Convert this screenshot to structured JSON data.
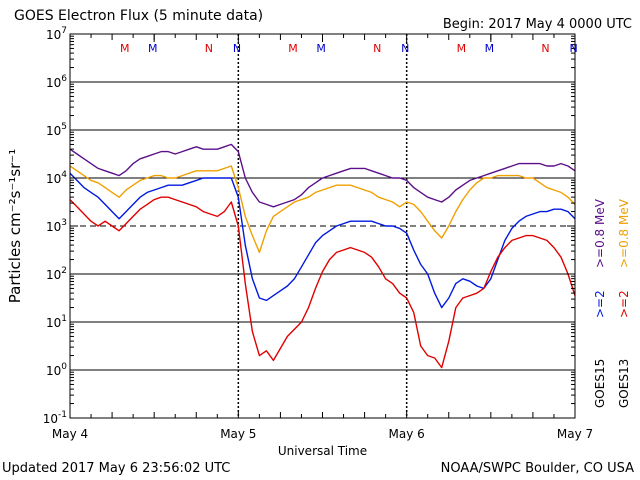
{
  "header": {
    "title": "GOES Electron Flux (5 minute data)",
    "begin": "Begin: 2017 May 4 0000 UTC"
  },
  "footer": {
    "updated": "Updated 2017 May  6 23:56:02 UTC",
    "credit": "NOAA/SWPC Boulder, CO USA"
  },
  "chart_data": {
    "type": "line",
    "xlabel": "Universal Time",
    "ylabel": "Particles cm⁻²s⁻¹sr⁻¹",
    "xlim": [
      0,
      72
    ],
    "ylim_log10": [
      -1,
      7
    ],
    "y_scale": "log",
    "x_ticks": [
      {
        "t": 0,
        "label": "May 4"
      },
      {
        "t": 24,
        "label": "May 5"
      },
      {
        "t": 48,
        "label": "May 6"
      },
      {
        "t": 72,
        "label": "May 7"
      }
    ],
    "y_ticks": [
      {
        "exp": -1,
        "label": "-1"
      },
      {
        "exp": 0,
        "label": "0"
      },
      {
        "exp": 1,
        "label": "1"
      },
      {
        "exp": 2,
        "label": "2"
      },
      {
        "exp": 3,
        "label": "3"
      },
      {
        "exp": 4,
        "label": "4"
      },
      {
        "exp": 5,
        "label": "5"
      },
      {
        "exp": 6,
        "label": "6"
      },
      {
        "exp": 7,
        "label": "7"
      }
    ],
    "threshold_exp": 3,
    "markers": [
      {
        "t": 7.8,
        "label": "M",
        "color": "#e00000"
      },
      {
        "t": 11.8,
        "label": "M",
        "color": "#0000cc"
      },
      {
        "t": 19.8,
        "label": "N",
        "color": "#e00000"
      },
      {
        "t": 23.8,
        "label": "N",
        "color": "#0000cc"
      },
      {
        "t": 31.8,
        "label": "M",
        "color": "#e00000"
      },
      {
        "t": 35.8,
        "label": "M",
        "color": "#0000cc"
      },
      {
        "t": 43.8,
        "label": "N",
        "color": "#e00000"
      },
      {
        "t": 47.8,
        "label": "N",
        "color": "#0000cc"
      },
      {
        "t": 55.8,
        "label": "M",
        "color": "#e00000"
      },
      {
        "t": 59.8,
        "label": "M",
        "color": "#0000cc"
      },
      {
        "t": 67.8,
        "label": "N",
        "color": "#e00000"
      },
      {
        "t": 71.8,
        "label": "N",
        "color": "#0000cc"
      }
    ],
    "legend": {
      "left_col_1": ">=2",
      "left_col_2": ">=0.8 MeV",
      "right_col_1": ">=2",
      "right_col_2": ">=0.8 MeV",
      "sat_left": "GOES15",
      "sat_right": "GOES13",
      "placement": "right"
    },
    "series": [
      {
        "name": "GOES15 >=0.8 MeV",
        "color": "#5c0f8b",
        "points": [
          [
            0,
            4.6
          ],
          [
            1,
            4.5
          ],
          [
            2,
            4.4
          ],
          [
            3,
            4.3
          ],
          [
            4,
            4.2
          ],
          [
            5,
            4.15
          ],
          [
            6,
            4.1
          ],
          [
            7,
            4.05
          ],
          [
            8,
            4.15
          ],
          [
            9,
            4.3
          ],
          [
            10,
            4.4
          ],
          [
            11,
            4.45
          ],
          [
            12,
            4.5
          ],
          [
            13,
            4.55
          ],
          [
            14,
            4.55
          ],
          [
            15,
            4.5
          ],
          [
            16,
            4.55
          ],
          [
            17,
            4.6
          ],
          [
            18,
            4.65
          ],
          [
            19,
            4.6
          ],
          [
            20,
            4.6
          ],
          [
            21,
            4.6
          ],
          [
            22,
            4.65
          ],
          [
            23,
            4.7
          ],
          [
            24,
            4.55
          ],
          [
            25,
            4.0
          ],
          [
            26,
            3.7
          ],
          [
            27,
            3.5
          ],
          [
            28,
            3.45
          ],
          [
            29,
            3.4
          ],
          [
            30,
            3.45
          ],
          [
            31,
            3.5
          ],
          [
            32,
            3.55
          ],
          [
            33,
            3.65
          ],
          [
            34,
            3.8
          ],
          [
            35,
            3.9
          ],
          [
            36,
            4.0
          ],
          [
            37,
            4.05
          ],
          [
            38,
            4.1
          ],
          [
            39,
            4.15
          ],
          [
            40,
            4.2
          ],
          [
            41,
            4.2
          ],
          [
            42,
            4.2
          ],
          [
            43,
            4.15
          ],
          [
            44,
            4.1
          ],
          [
            45,
            4.05
          ],
          [
            46,
            4.0
          ],
          [
            47,
            4.0
          ],
          [
            48,
            3.95
          ],
          [
            49,
            3.8
          ],
          [
            50,
            3.7
          ],
          [
            51,
            3.6
          ],
          [
            52,
            3.55
          ],
          [
            53,
            3.5
          ],
          [
            54,
            3.6
          ],
          [
            55,
            3.75
          ],
          [
            56,
            3.85
          ],
          [
            57,
            3.95
          ],
          [
            58,
            4.0
          ],
          [
            59,
            4.05
          ],
          [
            60,
            4.1
          ],
          [
            61,
            4.15
          ],
          [
            62,
            4.2
          ],
          [
            63,
            4.25
          ],
          [
            64,
            4.3
          ],
          [
            65,
            4.3
          ],
          [
            66,
            4.3
          ],
          [
            67,
            4.3
          ],
          [
            68,
            4.25
          ],
          [
            69,
            4.25
          ],
          [
            70,
            4.3
          ],
          [
            71,
            4.25
          ],
          [
            72,
            4.15
          ]
        ]
      },
      {
        "name": "GOES13 >=0.8 MeV",
        "color": "#f0a000",
        "points": [
          [
            0,
            4.25
          ],
          [
            1,
            4.15
          ],
          [
            2,
            4.05
          ],
          [
            3,
            3.95
          ],
          [
            4,
            3.9
          ],
          [
            5,
            3.8
          ],
          [
            6,
            3.7
          ],
          [
            7,
            3.6
          ],
          [
            8,
            3.75
          ],
          [
            9,
            3.85
          ],
          [
            10,
            3.95
          ],
          [
            11,
            4.0
          ],
          [
            12,
            4.05
          ],
          [
            13,
            4.05
          ],
          [
            14,
            4.0
          ],
          [
            15,
            4.0
          ],
          [
            16,
            4.05
          ],
          [
            17,
            4.1
          ],
          [
            18,
            4.15
          ],
          [
            19,
            4.15
          ],
          [
            20,
            4.15
          ],
          [
            21,
            4.15
          ],
          [
            22,
            4.2
          ],
          [
            23,
            4.25
          ],
          [
            24,
            3.8
          ],
          [
            25,
            3.2
          ],
          [
            26,
            2.8
          ],
          [
            27,
            2.45
          ],
          [
            28,
            2.9
          ],
          [
            29,
            3.2
          ],
          [
            30,
            3.3
          ],
          [
            31,
            3.4
          ],
          [
            32,
            3.5
          ],
          [
            33,
            3.55
          ],
          [
            34,
            3.6
          ],
          [
            35,
            3.7
          ],
          [
            36,
            3.75
          ],
          [
            37,
            3.8
          ],
          [
            38,
            3.85
          ],
          [
            39,
            3.85
          ],
          [
            40,
            3.85
          ],
          [
            41,
            3.8
          ],
          [
            42,
            3.75
          ],
          [
            43,
            3.7
          ],
          [
            44,
            3.6
          ],
          [
            45,
            3.55
          ],
          [
            46,
            3.5
          ],
          [
            47,
            3.4
          ],
          [
            48,
            3.5
          ],
          [
            49,
            3.45
          ],
          [
            50,
            3.3
          ],
          [
            51,
            3.1
          ],
          [
            52,
            2.9
          ],
          [
            53,
            2.75
          ],
          [
            54,
            3.0
          ],
          [
            55,
            3.3
          ],
          [
            56,
            3.55
          ],
          [
            57,
            3.75
          ],
          [
            58,
            3.9
          ],
          [
            59,
            4.0
          ],
          [
            60,
            4.0
          ],
          [
            61,
            4.05
          ],
          [
            62,
            4.05
          ],
          [
            63,
            4.05
          ],
          [
            64,
            4.05
          ],
          [
            65,
            4.0
          ],
          [
            66,
            4.0
          ],
          [
            67,
            3.9
          ],
          [
            68,
            3.8
          ],
          [
            69,
            3.75
          ],
          [
            70,
            3.7
          ],
          [
            71,
            3.6
          ],
          [
            72,
            3.45
          ]
        ]
      },
      {
        "name": "GOES15 >=2 MeV",
        "color": "#0019e0",
        "points": [
          [
            0,
            4.1
          ],
          [
            1,
            3.95
          ],
          [
            2,
            3.8
          ],
          [
            3,
            3.7
          ],
          [
            4,
            3.6
          ],
          [
            5,
            3.45
          ],
          [
            6,
            3.3
          ],
          [
            7,
            3.15
          ],
          [
            8,
            3.3
          ],
          [
            9,
            3.45
          ],
          [
            10,
            3.6
          ],
          [
            11,
            3.7
          ],
          [
            12,
            3.75
          ],
          [
            13,
            3.8
          ],
          [
            14,
            3.85
          ],
          [
            15,
            3.85
          ],
          [
            16,
            3.85
          ],
          [
            17,
            3.9
          ],
          [
            18,
            3.95
          ],
          [
            19,
            4.0
          ],
          [
            20,
            4.0
          ],
          [
            21,
            4.0
          ],
          [
            22,
            4.0
          ],
          [
            23,
            4.0
          ],
          [
            24,
            3.6
          ],
          [
            25,
            2.6
          ],
          [
            26,
            1.9
          ],
          [
            27,
            1.5
          ],
          [
            28,
            1.45
          ],
          [
            29,
            1.55
          ],
          [
            30,
            1.65
          ],
          [
            31,
            1.75
          ],
          [
            32,
            1.9
          ],
          [
            33,
            2.15
          ],
          [
            34,
            2.4
          ],
          [
            35,
            2.65
          ],
          [
            36,
            2.8
          ],
          [
            37,
            2.9
          ],
          [
            38,
            3.0
          ],
          [
            39,
            3.05
          ],
          [
            40,
            3.1
          ],
          [
            41,
            3.1
          ],
          [
            42,
            3.1
          ],
          [
            43,
            3.1
          ],
          [
            44,
            3.05
          ],
          [
            45,
            3.0
          ],
          [
            46,
            3.0
          ],
          [
            47,
            2.95
          ],
          [
            48,
            2.85
          ],
          [
            49,
            2.5
          ],
          [
            50,
            2.2
          ],
          [
            51,
            2.0
          ],
          [
            52,
            1.6
          ],
          [
            53,
            1.3
          ],
          [
            54,
            1.5
          ],
          [
            55,
            1.8
          ],
          [
            56,
            1.9
          ],
          [
            57,
            1.85
          ],
          [
            58,
            1.75
          ],
          [
            59,
            1.7
          ],
          [
            60,
            1.9
          ],
          [
            61,
            2.3
          ],
          [
            62,
            2.7
          ],
          [
            63,
            2.95
          ],
          [
            64,
            3.1
          ],
          [
            65,
            3.2
          ],
          [
            66,
            3.25
          ],
          [
            67,
            3.3
          ],
          [
            68,
            3.3
          ],
          [
            69,
            3.35
          ],
          [
            70,
            3.35
          ],
          [
            71,
            3.3
          ],
          [
            72,
            3.15
          ]
        ]
      },
      {
        "name": "GOES13 >=2 MeV",
        "color": "#e00000",
        "points": [
          [
            0,
            3.55
          ],
          [
            1,
            3.4
          ],
          [
            2,
            3.25
          ],
          [
            3,
            3.1
          ],
          [
            4,
            3.0
          ],
          [
            5,
            3.1
          ],
          [
            6,
            3.0
          ],
          [
            7,
            2.9
          ],
          [
            8,
            3.05
          ],
          [
            9,
            3.2
          ],
          [
            10,
            3.35
          ],
          [
            11,
            3.45
          ],
          [
            12,
            3.55
          ],
          [
            13,
            3.6
          ],
          [
            14,
            3.6
          ],
          [
            15,
            3.55
          ],
          [
            16,
            3.5
          ],
          [
            17,
            3.45
          ],
          [
            18,
            3.4
          ],
          [
            19,
            3.3
          ],
          [
            20,
            3.25
          ],
          [
            21,
            3.2
          ],
          [
            22,
            3.3
          ],
          [
            23,
            3.5
          ],
          [
            24,
            3.0
          ],
          [
            25,
            1.8
          ],
          [
            26,
            0.8
          ],
          [
            27,
            0.3
          ],
          [
            28,
            0.4
          ],
          [
            29,
            0.2
          ],
          [
            30,
            0.45
          ],
          [
            31,
            0.7
          ],
          [
            32,
            0.85
          ],
          [
            33,
            1.0
          ],
          [
            34,
            1.3
          ],
          [
            35,
            1.7
          ],
          [
            36,
            2.05
          ],
          [
            37,
            2.3
          ],
          [
            38,
            2.45
          ],
          [
            39,
            2.5
          ],
          [
            40,
            2.55
          ],
          [
            41,
            2.5
          ],
          [
            42,
            2.45
          ],
          [
            43,
            2.35
          ],
          [
            44,
            2.15
          ],
          [
            45,
            1.9
          ],
          [
            46,
            1.8
          ],
          [
            47,
            1.6
          ],
          [
            48,
            1.5
          ],
          [
            49,
            1.2
          ],
          [
            50,
            0.5
          ],
          [
            51,
            0.3
          ],
          [
            52,
            0.25
          ],
          [
            53,
            0.05
          ],
          [
            54,
            0.6
          ],
          [
            55,
            1.3
          ],
          [
            56,
            1.5
          ],
          [
            57,
            1.55
          ],
          [
            58,
            1.6
          ],
          [
            59,
            1.7
          ],
          [
            60,
            2.05
          ],
          [
            61,
            2.35
          ],
          [
            62,
            2.55
          ],
          [
            63,
            2.7
          ],
          [
            64,
            2.75
          ],
          [
            65,
            2.8
          ],
          [
            66,
            2.8
          ],
          [
            67,
            2.75
          ],
          [
            68,
            2.7
          ],
          [
            69,
            2.55
          ],
          [
            70,
            2.35
          ],
          [
            71,
            2.0
          ],
          [
            72,
            1.55
          ]
        ]
      }
    ]
  }
}
